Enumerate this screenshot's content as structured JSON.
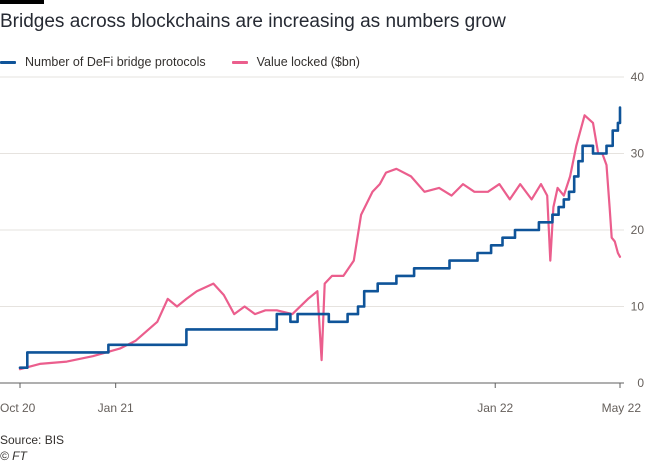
{
  "header": {
    "title": "Bridges across blockchains are increasing as numbers grow"
  },
  "legend": [
    {
      "label": "Number of DeFi bridge protocols",
      "color": "#0f5499"
    },
    {
      "label": "Value locked ($bn)",
      "color": "#eb5e8d"
    }
  ],
  "footer": {
    "source": "Source: BIS",
    "credit": "© FT"
  },
  "chart_data": {
    "type": "line",
    "title": "Bridges across blockchains are increasing as numbers grow",
    "xlabel": "",
    "ylabel": "",
    "x_range": [
      "2020-10-01",
      "2022-05-01"
    ],
    "ylim": [
      0,
      40
    ],
    "y_ticks": [
      0,
      10,
      20,
      30,
      40
    ],
    "x_ticks": [
      {
        "label": "Oct 20",
        "date": "2020-10-01"
      },
      {
        "label": "Jan 21",
        "date": "2021-01-01"
      },
      {
        "label": "Jan 22",
        "date": "2022-01-01"
      },
      {
        "label": "May 22",
        "date": "2022-05-01"
      }
    ],
    "grid": true,
    "legend_position": "top-left",
    "series": [
      {
        "name": "Number of DeFi bridge protocols",
        "color": "#0f5499",
        "step": true,
        "points": [
          [
            "2020-10-01",
            2
          ],
          [
            "2020-10-08",
            4
          ],
          [
            "2020-12-25",
            5
          ],
          [
            "2021-03-10",
            7
          ],
          [
            "2021-06-05",
            9
          ],
          [
            "2021-06-18",
            8
          ],
          [
            "2021-06-25",
            9
          ],
          [
            "2021-07-25",
            8
          ],
          [
            "2021-08-12",
            9
          ],
          [
            "2021-08-22",
            10
          ],
          [
            "2021-08-28",
            12
          ],
          [
            "2021-09-10",
            13
          ],
          [
            "2021-09-28",
            14
          ],
          [
            "2021-10-15",
            15
          ],
          [
            "2021-11-18",
            16
          ],
          [
            "2021-12-15",
            17
          ],
          [
            "2021-12-28",
            18
          ],
          [
            "2022-01-08",
            19
          ],
          [
            "2022-01-20",
            20
          ],
          [
            "2022-02-12",
            21
          ],
          [
            "2022-02-25",
            22
          ],
          [
            "2022-03-03",
            23
          ],
          [
            "2022-03-08",
            24
          ],
          [
            "2022-03-13",
            25
          ],
          [
            "2022-03-18",
            27
          ],
          [
            "2022-03-22",
            29
          ],
          [
            "2022-03-26",
            31
          ],
          [
            "2022-04-05",
            30
          ],
          [
            "2022-04-18",
            31
          ],
          [
            "2022-04-24",
            33
          ],
          [
            "2022-04-29",
            34
          ],
          [
            "2022-05-01",
            36
          ]
        ]
      },
      {
        "name": "Value locked ($bn)",
        "color": "#eb5e8d",
        "step": false,
        "points": [
          [
            "2020-10-01",
            1.8
          ],
          [
            "2020-10-20",
            2.5
          ],
          [
            "2020-11-15",
            2.8
          ],
          [
            "2020-12-10",
            3.5
          ],
          [
            "2021-01-05",
            4.5
          ],
          [
            "2021-01-20",
            5.5
          ],
          [
            "2021-02-10",
            8.0
          ],
          [
            "2021-02-20",
            11.0
          ],
          [
            "2021-03-01",
            10.0
          ],
          [
            "2021-03-10",
            11.0
          ],
          [
            "2021-03-20",
            12.0
          ],
          [
            "2021-04-05",
            13.0
          ],
          [
            "2021-04-15",
            11.5
          ],
          [
            "2021-04-25",
            9.0
          ],
          [
            "2021-05-05",
            10.0
          ],
          [
            "2021-05-15",
            9.0
          ],
          [
            "2021-05-25",
            9.5
          ],
          [
            "2021-06-05",
            9.5
          ],
          [
            "2021-06-20",
            9.0
          ],
          [
            "2021-07-05",
            11.0
          ],
          [
            "2021-07-14",
            12.0
          ],
          [
            "2021-07-18",
            3.0
          ],
          [
            "2021-07-21",
            13.0
          ],
          [
            "2021-07-28",
            14.0
          ],
          [
            "2021-08-08",
            14.0
          ],
          [
            "2021-08-18",
            16.0
          ],
          [
            "2021-08-25",
            22.0
          ],
          [
            "2021-09-05",
            25.0
          ],
          [
            "2021-09-12",
            26.0
          ],
          [
            "2021-09-18",
            27.5
          ],
          [
            "2021-09-28",
            28.0
          ],
          [
            "2021-10-12",
            27.0
          ],
          [
            "2021-10-25",
            25.0
          ],
          [
            "2021-11-08",
            25.5
          ],
          [
            "2021-11-20",
            24.5
          ],
          [
            "2021-12-01",
            26.0
          ],
          [
            "2021-12-12",
            25.0
          ],
          [
            "2021-12-25",
            25.0
          ],
          [
            "2022-01-05",
            26.0
          ],
          [
            "2022-01-15",
            24.0
          ],
          [
            "2022-01-25",
            26.0
          ],
          [
            "2022-02-05",
            24.0
          ],
          [
            "2022-02-14",
            26.0
          ],
          [
            "2022-02-20",
            24.5
          ],
          [
            "2022-02-23",
            16.0
          ],
          [
            "2022-02-26",
            23.0
          ],
          [
            "2022-03-02",
            25.5
          ],
          [
            "2022-03-08",
            24.5
          ],
          [
            "2022-03-14",
            27.0
          ],
          [
            "2022-03-20",
            31.0
          ],
          [
            "2022-03-28",
            35.0
          ],
          [
            "2022-04-05",
            34.0
          ],
          [
            "2022-04-10",
            30.0
          ],
          [
            "2022-04-14",
            30.0
          ],
          [
            "2022-04-18",
            28.5
          ],
          [
            "2022-04-21",
            23.0
          ],
          [
            "2022-04-23",
            19.0
          ],
          [
            "2022-04-26",
            18.5
          ],
          [
            "2022-04-29",
            17.0
          ],
          [
            "2022-05-01",
            16.5
          ]
        ]
      }
    ]
  }
}
